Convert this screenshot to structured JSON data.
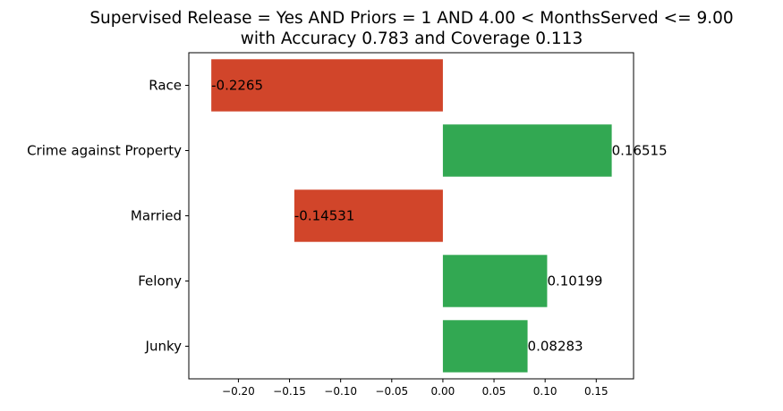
{
  "chart_data": {
    "type": "bar",
    "orientation": "horizontal",
    "title_lines": [
      "Supervised Release = Yes AND Priors = 1 AND 4.00 < MonthsServed <= 9.00",
      "with Accuracy 0.783 and Coverage 0.113"
    ],
    "categories": [
      "Race",
      "Crime against Property",
      "Married",
      "Felony",
      "Junky"
    ],
    "values": [
      -0.2265,
      0.16515,
      -0.14531,
      0.10199,
      0.08283
    ],
    "data_labels": [
      "-0.2265",
      "0.16515",
      "-0.14531",
      "0.10199",
      "0.08283"
    ],
    "xlim": [
      -0.2485,
      0.1865
    ],
    "xticks": [
      -0.2,
      -0.15,
      -0.1,
      -0.05,
      0.0,
      0.05,
      0.1,
      0.15
    ],
    "xtick_labels": [
      "−0.20",
      "−0.15",
      "−0.10",
      "−0.05",
      "0.00",
      "0.05",
      "0.10",
      "0.15"
    ],
    "colors": {
      "positive": "#32a852",
      "negative": "#d1452a"
    },
    "grid": false,
    "xlabel": "",
    "ylabel": ""
  }
}
